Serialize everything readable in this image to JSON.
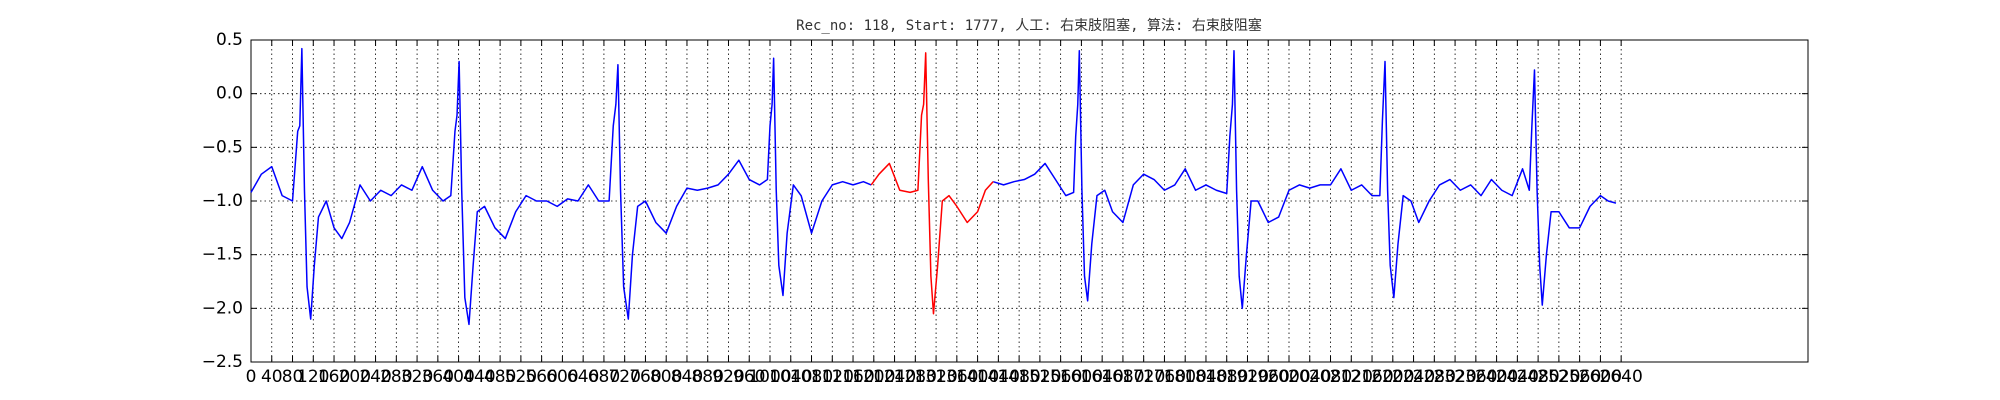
{
  "chart_data": {
    "type": "line",
    "title": "Rec_no: 118, Start: 1777, 人工: 右束肢阻塞, 算法: 右束肢阻塞",
    "xlim": [
      0,
      3000
    ],
    "ylim": [
      -2.5,
      0.5
    ],
    "xticks": [
      0,
      40,
      80,
      120,
      160,
      200,
      240,
      280,
      320,
      360,
      400,
      440,
      480,
      520,
      560,
      600,
      640,
      680,
      720,
      760,
      800,
      840,
      880,
      920,
      960,
      1000,
      1040,
      1080,
      1120,
      1160,
      1200,
      1240,
      1280,
      1320,
      1360,
      1400,
      1440,
      1480,
      1520,
      1560,
      1600,
      1640,
      1680,
      1720,
      1760,
      1800,
      1840,
      1880,
      1920,
      1960,
      2000,
      2040,
      2080,
      2120,
      2160,
      2200,
      2240,
      2280,
      2320,
      2360,
      2400,
      2440,
      2480,
      2520,
      2560,
      2600,
      2640
    ],
    "yticks": [
      {
        "value": -2.5,
        "label": "−2.5"
      },
      {
        "value": -2.0,
        "label": "−2.0"
      },
      {
        "value": -1.5,
        "label": "−1.5"
      },
      {
        "value": -1.0,
        "label": "−1.0"
      },
      {
        "value": -0.5,
        "label": "−0.5"
      },
      {
        "value": 0,
        "label": "0.0"
      },
      0.5
    ],
    "grid": true,
    "x": [
      0,
      20,
      40,
      60,
      80,
      90,
      94,
      98,
      103,
      108,
      115,
      122,
      130,
      145,
      160,
      175,
      190,
      210,
      230,
      250,
      270,
      290,
      310,
      330,
      350,
      370,
      385,
      393,
      397,
      401,
      406,
      412,
      420,
      428,
      436,
      450,
      470,
      490,
      510,
      530,
      550,
      570,
      590,
      610,
      630,
      650,
      670,
      690,
      698,
      703,
      707,
      712,
      718,
      727,
      735,
      745,
      760,
      780,
      800,
      820,
      840,
      860,
      880,
      900,
      920,
      940,
      960,
      980,
      995,
      1000,
      1004,
      1007,
      1012,
      1017,
      1025,
      1033,
      1045,
      1060,
      1080,
      1100,
      1120,
      1140,
      1160,
      1180,
      1195,
      1210,
      1230,
      1250,
      1270,
      1285,
      1292,
      1296,
      1300,
      1305,
      1310,
      1315,
      1323,
      1332,
      1345,
      1360,
      1380,
      1400,
      1415,
      1430,
      1450,
      1470,
      1490,
      1510,
      1530,
      1550,
      1570,
      1585,
      1589,
      1593,
      1596,
      1601,
      1606,
      1612,
      1620,
      1630,
      1645,
      1660,
      1680,
      1700,
      1720,
      1740,
      1760,
      1780,
      1800,
      1820,
      1840,
      1860,
      1880,
      1886,
      1891,
      1894,
      1899,
      1904,
      1910,
      1918,
      1927,
      1940,
      1960,
      1980,
      2000,
      2020,
      2040,
      2060,
      2080,
      2100,
      2120,
      2140,
      2160,
      2175,
      2180,
      2185,
      2190,
      2195,
      2202,
      2210,
      2220,
      2235,
      2250,
      2270,
      2290,
      2310,
      2330,
      2350,
      2370,
      2390,
      2410,
      2430,
      2450,
      2463,
      2468,
      2473,
      2478,
      2483,
      2488,
      2496,
      2505,
      2520,
      2540,
      2560,
      2580,
      2600,
      2615,
      2630
    ],
    "series": [
      {
        "color": "#0000ff",
        "values": [
          -0.92,
          -0.75,
          -0.68,
          -0.95,
          -1.0,
          -0.35,
          -0.3,
          0.42,
          -0.9,
          -1.8,
          -2.1,
          -1.6,
          -1.15,
          -1.0,
          -1.25,
          -1.35,
          -1.2,
          -0.85,
          -1.0,
          -0.9,
          -0.95,
          -0.85,
          -0.9,
          -0.68,
          -0.9,
          -1.0,
          -0.95,
          -0.35,
          -0.2,
          0.3,
          -0.9,
          -1.9,
          -2.15,
          -1.6,
          -1.1,
          -1.05,
          -1.25,
          -1.35,
          -1.1,
          -0.95,
          -1.0,
          -1.0,
          -1.05,
          -0.98,
          -1.0,
          -0.85,
          -1.0,
          -1.0,
          -0.3,
          -0.1,
          0.27,
          -0.9,
          -1.8,
          -2.1,
          -1.5,
          -1.05,
          -1.0,
          -1.2,
          -1.3,
          -1.05,
          -0.88,
          -0.9,
          -0.88,
          -0.85,
          -0.75,
          -0.62,
          -0.8,
          -0.85,
          -0.8,
          -0.3,
          -0.1,
          0.33,
          -0.9,
          -1.6,
          -1.88,
          -1.3,
          -0.85,
          -0.95,
          -1.3,
          -1.0,
          -0.85,
          -0.82,
          -0.85,
          -0.82,
          -0.85,
          null,
          null,
          null,
          null,
          null,
          null,
          null,
          null,
          null,
          null,
          null,
          null,
          null,
          null,
          null,
          null,
          null,
          null,
          -0.82,
          -0.85,
          -0.82,
          -0.8,
          -0.75,
          -0.65,
          -0.8,
          -0.95,
          -0.92,
          -0.4,
          -0.1,
          0.4,
          -0.9,
          -1.7,
          -1.93,
          -1.4,
          -0.95,
          -0.9,
          -1.1,
          -1.2,
          -0.85,
          -0.75,
          -0.8,
          -0.9,
          -0.85,
          -0.7,
          -0.9,
          -0.85,
          -0.9,
          -0.93,
          -0.4,
          -0.1,
          0.4,
          -0.9,
          -1.7,
          -2.0,
          -1.5,
          -1.0,
          -1.0,
          -1.2,
          -1.15,
          -0.9,
          -0.85,
          -0.88,
          -0.85,
          -0.85,
          -0.7,
          -0.9,
          -0.85,
          -0.95,
          -0.95,
          -0.25,
          0.3,
          -0.9,
          -1.6,
          -1.9,
          -1.4,
          -0.95,
          -1.0,
          -1.2,
          -1.0,
          -0.85,
          -0.8,
          -0.9,
          -0.85,
          -0.95,
          -0.8,
          -0.9,
          -0.95,
          -0.7,
          -0.9,
          -0.3,
          0.22,
          -0.9,
          -1.6,
          -1.97,
          -1.5,
          -1.1,
          -1.1,
          -1.25,
          -1.25,
          -1.05,
          -0.95,
          -1.0,
          -1.02
        ]
      },
      {
        "color": "#ff0000",
        "values": [
          null,
          null,
          null,
          null,
          null,
          null,
          null,
          null,
          null,
          null,
          null,
          null,
          null,
          null,
          null,
          null,
          null,
          null,
          null,
          null,
          null,
          null,
          null,
          null,
          null,
          null,
          null,
          null,
          null,
          null,
          null,
          null,
          null,
          null,
          null,
          null,
          null,
          null,
          null,
          null,
          null,
          null,
          null,
          null,
          null,
          null,
          null,
          null,
          null,
          null,
          null,
          null,
          null,
          null,
          null,
          null,
          null,
          null,
          null,
          null,
          null,
          null,
          null,
          null,
          null,
          null,
          null,
          null,
          null,
          null,
          null,
          null,
          null,
          null,
          null,
          null,
          null,
          null,
          null,
          null,
          null,
          null,
          null,
          null,
          -0.85,
          -0.75,
          -0.65,
          -0.9,
          -0.92,
          -0.9,
          -0.2,
          -0.1,
          0.38,
          -0.8,
          -1.7,
          -2.05,
          -1.6,
          -1.0,
          -0.95,
          -1.05,
          -1.2,
          -1.1,
          -0.9,
          -0.82,
          null,
          null,
          null,
          null,
          null,
          null,
          null,
          null,
          null,
          null,
          null,
          null,
          null,
          null,
          null,
          null,
          null,
          null,
          null,
          null,
          null,
          null,
          null,
          null,
          null,
          null,
          null,
          null,
          null,
          null,
          null,
          null,
          null,
          null,
          null,
          null,
          null,
          null,
          null,
          null,
          null,
          null,
          null,
          null,
          null,
          null,
          null,
          null,
          null,
          null,
          null,
          null,
          null,
          null,
          null,
          null,
          null,
          null,
          null,
          null,
          null,
          null,
          null,
          null,
          null,
          null,
          null,
          null,
          null,
          null,
          null,
          null,
          null,
          null,
          null,
          null,
          null,
          null,
          null,
          null,
          null,
          null,
          null,
          null
        ]
      }
    ]
  }
}
